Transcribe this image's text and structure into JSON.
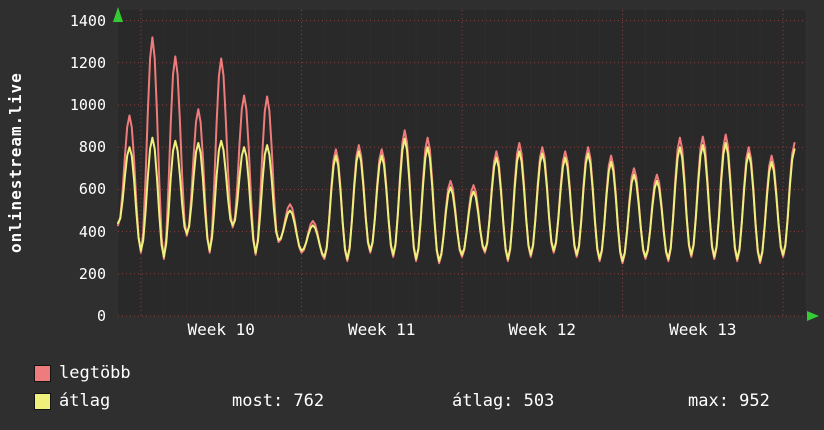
{
  "chart_data": {
    "type": "line",
    "title": "onlinestream.live",
    "x_tick_labels": [
      "Week 10",
      "Week 11",
      "Week 12",
      "Week 13"
    ],
    "y_ticks": [
      0,
      200,
      400,
      600,
      800,
      1000,
      1200,
      1400
    ],
    "ylim": [
      0,
      1450
    ],
    "days": 30,
    "week_boundary_days": [
      1,
      8,
      15,
      22,
      29
    ],
    "week_label_days": [
      4.5,
      11.5,
      18.5,
      25.5
    ],
    "grid": true,
    "legend_position": "bottom",
    "series": [
      {
        "name": "legtöbb",
        "color": "#ee7c7c",
        "peaks": [
          950,
          1320,
          1230,
          980,
          1220,
          1045,
          1040,
          530,
          450,
          790,
          810,
          790,
          880,
          845,
          640,
          620,
          780,
          820,
          800,
          780,
          800,
          760,
          700,
          670,
          845,
          850,
          860,
          800,
          760,
          820
        ],
        "troughs": [
          430,
          300,
          270,
          380,
          300,
          420,
          290,
          350,
          300,
          270,
          260,
          300,
          280,
          260,
          250,
          280,
          300,
          260,
          280,
          300,
          280,
          260,
          250,
          270,
          260,
          280,
          270,
          260,
          250,
          280
        ]
      },
      {
        "name": "átlag",
        "color": "#efef7b",
        "peaks": [
          800,
          845,
          830,
          820,
          830,
          800,
          810,
          500,
          430,
          760,
          780,
          760,
          840,
          800,
          610,
          590,
          750,
          780,
          770,
          750,
          770,
          730,
          670,
          640,
          800,
          810,
          820,
          770,
          730,
          790
        ],
        "troughs": [
          440,
          310,
          280,
          390,
          310,
          430,
          300,
          360,
          310,
          280,
          270,
          310,
          290,
          270,
          260,
          290,
          310,
          270,
          290,
          310,
          290,
          270,
          260,
          280,
          270,
          290,
          280,
          270,
          260,
          290
        ]
      }
    ],
    "stats": [
      {
        "text": "most: 762"
      },
      {
        "text": "átlag: 503"
      },
      {
        "text": "max: 952"
      }
    ],
    "colors": {
      "grid_major": "#8a4040",
      "grid_minor": "#4a3030",
      "arrow": "#33cc33",
      "background": "#2f2f2f",
      "plot_background": "#292929",
      "text": "#ffffff",
      "series_red": "#ee7c7c",
      "series_yellow": "#efef7b"
    }
  }
}
